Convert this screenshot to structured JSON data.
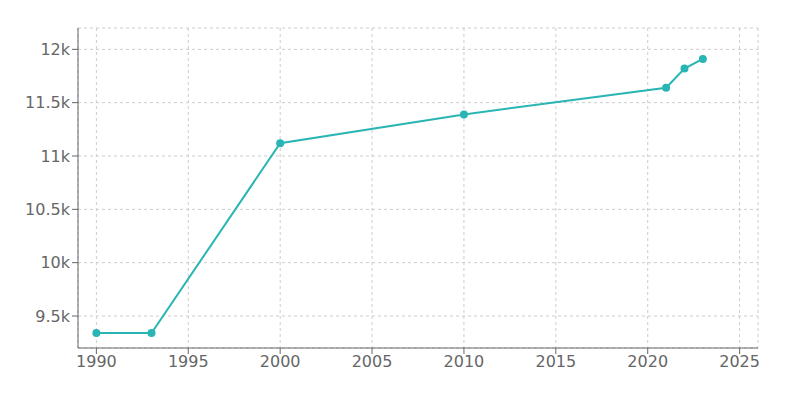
{
  "chart_data": {
    "type": "line",
    "x": [
      1990,
      1993,
      2000,
      2010,
      2021,
      2022,
      2023
    ],
    "values": [
      9340,
      9340,
      11120,
      11390,
      11640,
      11820,
      11910
    ],
    "color": "#2ab5b5",
    "marker": "circle",
    "xlim": [
      1989,
      2026
    ],
    "ylim": [
      9200,
      12200
    ],
    "xticks": [
      1990,
      1995,
      2000,
      2005,
      2010,
      2015,
      2020,
      2025
    ],
    "yticks": [
      {
        "value": 9500,
        "label": "9.5k"
      },
      {
        "value": 10000,
        "label": "10k"
      },
      {
        "value": 10500,
        "label": "10.5k"
      },
      {
        "value": 11000,
        "label": "11k"
      },
      {
        "value": 11500,
        "label": "11.5k"
      },
      {
        "value": 12000,
        "label": "12k"
      }
    ],
    "grid": true
  }
}
